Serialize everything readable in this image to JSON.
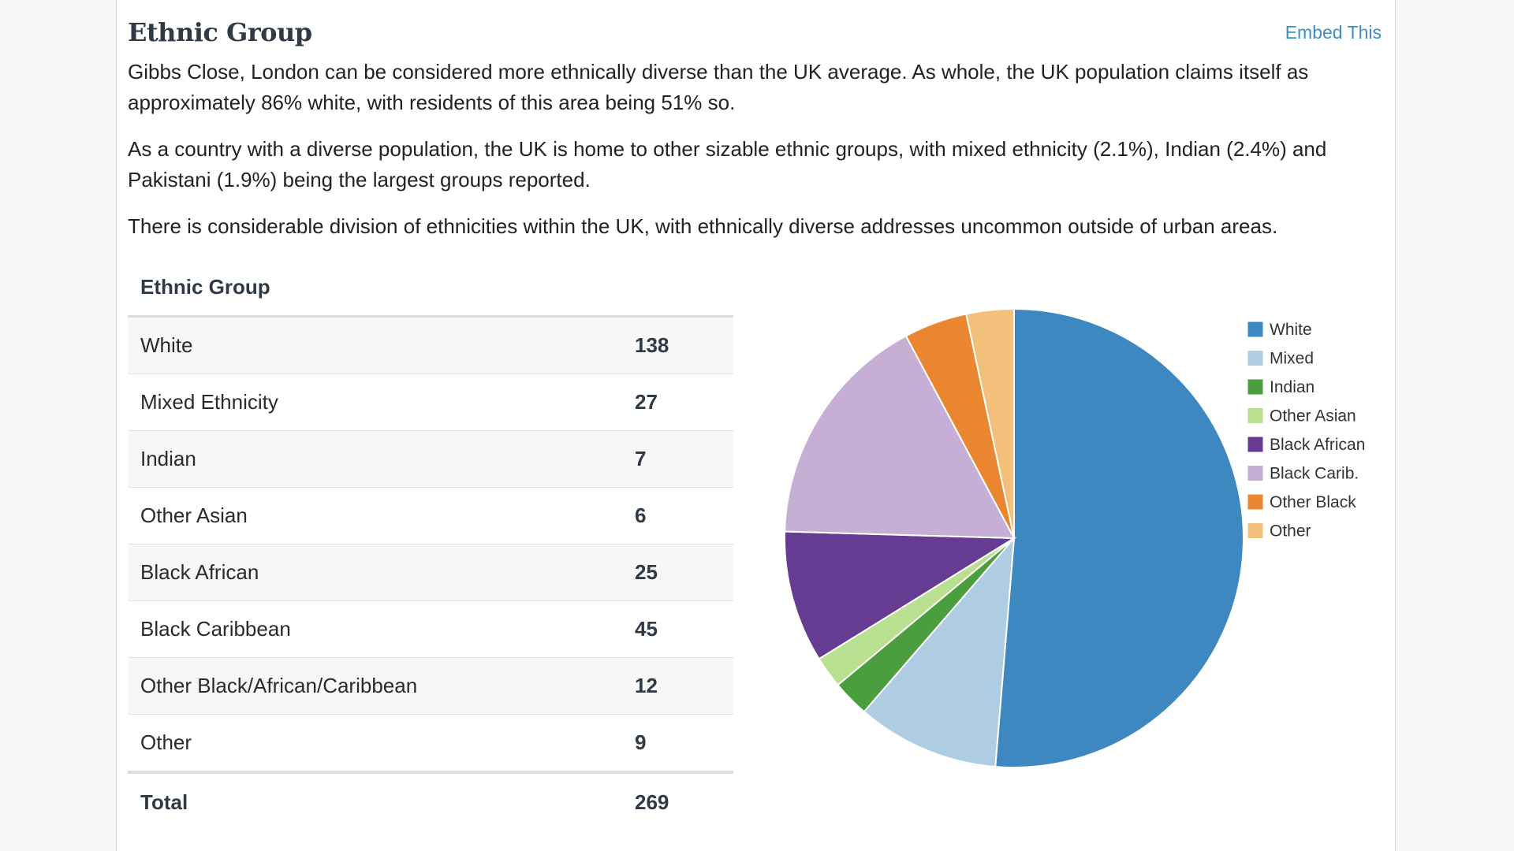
{
  "section": {
    "title": "Ethnic Group",
    "embed_label": "Embed This",
    "paragraphs": [
      "Gibbs Close, London can be considered more ethnically diverse than the UK average. As whole, the UK population claims itself as approximately 86% white, with residents of this area being 51% so.",
      "As a country with a diverse population, the UK is home to other sizable ethnic groups, with mixed ethnicity (2.1%), Indian (2.4%) and Pakistani (1.9%) being the largest groups reported.",
      "There is considerable division of ethnicities within the UK, with ethnically diverse addresses uncommon outside of urban areas."
    ]
  },
  "table": {
    "header": "Ethnic Group",
    "rows": [
      {
        "label": "White",
        "value": "138"
      },
      {
        "label": "Mixed Ethnicity",
        "value": "27"
      },
      {
        "label": "Indian",
        "value": "7"
      },
      {
        "label": "Other Asian",
        "value": "6"
      },
      {
        "label": "Black African",
        "value": "25"
      },
      {
        "label": "Black Caribbean",
        "value": "45"
      },
      {
        "label": "Other Black/African/Caribbean",
        "value": "12"
      },
      {
        "label": "Other",
        "value": "9"
      }
    ],
    "total_label": "Total",
    "total_value": "269"
  },
  "chart_data": {
    "type": "pie",
    "labels": [
      "White",
      "Mixed",
      "Indian",
      "Other Asian",
      "Black African",
      "Black Carib.",
      "Other Black",
      "Other"
    ],
    "values": [
      138,
      27,
      7,
      6,
      25,
      45,
      12,
      9
    ],
    "colors": [
      "#3d88c0",
      "#aecde2",
      "#4b9e3e",
      "#b9df90",
      "#653c92",
      "#c6aed5",
      "#ea8630",
      "#f3c07c"
    ],
    "legend_position": "right"
  }
}
